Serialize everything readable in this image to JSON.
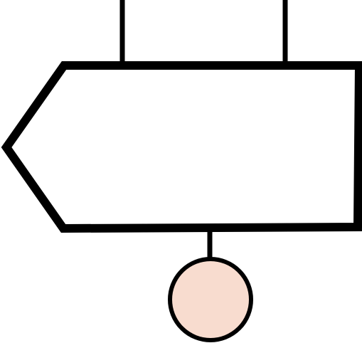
{
  "colors": {
    "background": "#ffffff",
    "outline": "#000000",
    "sign_fill": "#ffffff",
    "knob_fill": "#f8dccf"
  },
  "icons": {
    "sign": "left-arrow-signpost-icon",
    "knob": "circle-knob-icon"
  }
}
